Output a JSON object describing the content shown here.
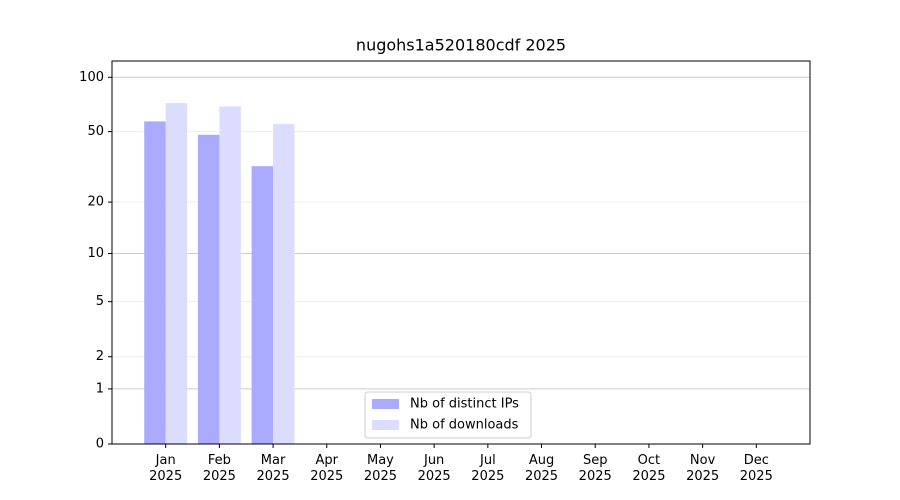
{
  "chart_data": {
    "type": "bar",
    "title": "nugohs1a520180cdf 2025",
    "categories": [
      "Jan\n2025",
      "Feb\n2025",
      "Mar\n2025",
      "Apr\n2025",
      "May\n2025",
      "Jun\n2025",
      "Jul\n2025",
      "Aug\n2025",
      "Sep\n2025",
      "Oct\n2025",
      "Nov\n2025",
      "Dec\n2025"
    ],
    "series": [
      {
        "name": "Nb of distinct IPs",
        "color": "#aaaaff",
        "values": [
          57,
          48,
          32,
          null,
          null,
          null,
          null,
          null,
          null,
          null,
          null,
          null
        ]
      },
      {
        "name": "Nb of downloads",
        "color": "#dcdcff",
        "values": [
          72,
          69,
          55,
          null,
          null,
          null,
          null,
          null,
          null,
          null,
          null,
          null
        ]
      }
    ],
    "yscale": "log1p",
    "ylim": [
      0,
      123
    ],
    "yticks": [
      0,
      1,
      2,
      5,
      10,
      20,
      50,
      100
    ],
    "grid": true,
    "legend": "lower center"
  }
}
